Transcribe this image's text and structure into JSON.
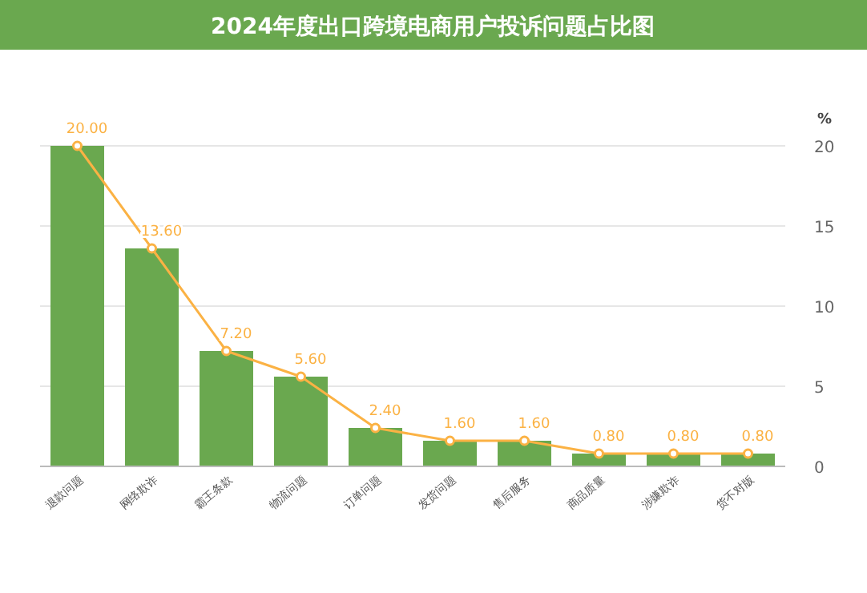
{
  "chart_data": {
    "type": "bar",
    "title": "2024年度出口跨境电商用户投诉问题占比图",
    "ylabel": "%",
    "categories": [
      "退款问题",
      "网络欺诈",
      "霸王条款",
      "物流问题",
      "订单问题",
      "发货问题",
      "售后服务",
      "商品质量",
      "涉嫌欺诈",
      "货不对版"
    ],
    "series": [
      {
        "color": "#6aa84f",
        "values": [
          20,
          13.6,
          7.2,
          5.6,
          2.4,
          1.6,
          1.6,
          0.8,
          0.8,
          0.8
        ]
      },
      {
        "type": "line",
        "color": "#fbb244",
        "marker": "circle",
        "values": [
          20,
          13.6,
          7.2,
          5.6,
          2.4,
          1.6,
          1.6,
          0.8,
          0.8,
          0.8
        ],
        "value_labels": [
          "20.00",
          "13.60",
          "7.20",
          "5.60",
          "2.40",
          "1.60",
          "1.60",
          "0.80",
          "0.80",
          "0.80"
        ]
      }
    ],
    "ylim": [
      0,
      20
    ],
    "yticks": [
      0,
      5,
      10,
      15,
      20
    ],
    "grid": "y"
  }
}
